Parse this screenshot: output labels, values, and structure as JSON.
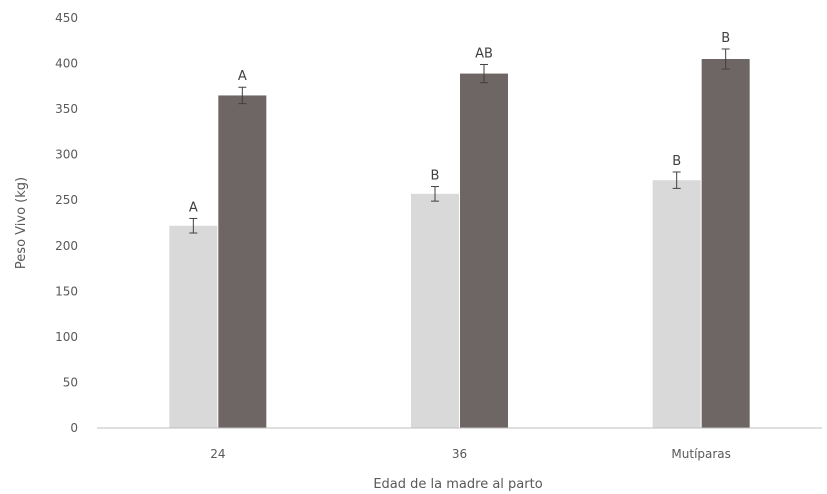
{
  "chart_data": {
    "type": "bar",
    "title": "",
    "xlabel": "Edad de la madre al parto",
    "ylabel": "Peso Vivo (kg)",
    "ylim": [
      0,
      450
    ],
    "yticks": [
      0,
      50,
      100,
      150,
      200,
      250,
      300,
      350,
      400,
      450
    ],
    "grid": false,
    "legend": "none",
    "categories": [
      "24",
      "36",
      "Mutíparas"
    ],
    "series": [
      {
        "color": "#d9d9d9",
        "values": [
          222,
          257,
          272
        ],
        "errors": [
          8,
          8,
          9
        ],
        "labels": [
          "A",
          "B",
          "B"
        ]
      },
      {
        "color": "#6e6565",
        "values": [
          365,
          389,
          405
        ],
        "errors": [
          9,
          10,
          11
        ],
        "labels": [
          "A",
          "AB",
          "B"
        ]
      }
    ]
  }
}
